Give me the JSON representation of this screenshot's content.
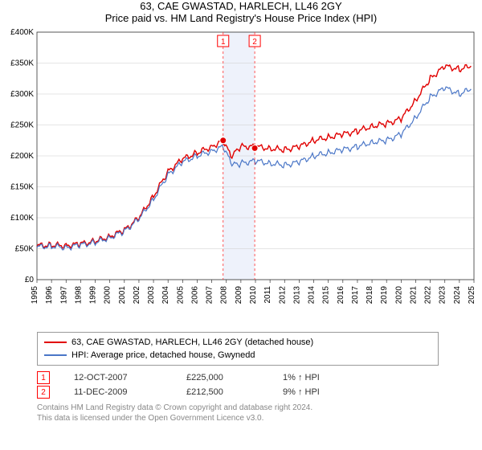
{
  "title": "63, CAE GWASTAD, HARLECH, LL46 2GY",
  "subtitle": "Price paid vs. HM Land Registry's House Price Index (HPI)",
  "chart": {
    "type": "line",
    "x_years": [
      1995,
      1996,
      1997,
      1998,
      1999,
      2000,
      2001,
      2002,
      2003,
      2004,
      2005,
      2006,
      2007,
      2008,
      2009,
      2010,
      2011,
      2012,
      2013,
      2014,
      2015,
      2016,
      2017,
      2018,
      2019,
      2020,
      2021,
      2022,
      2023,
      2024,
      2025
    ],
    "ylim": [
      0,
      400000
    ],
    "ytick_step": 50000,
    "ytick_labels": [
      "£0",
      "£50K",
      "£100K",
      "£150K",
      "£200K",
      "£250K",
      "£300K",
      "£350K",
      "£400K"
    ],
    "background_color": "#ffffff",
    "grid_color": "#cccccc",
    "axis_color": "#333333",
    "tick_fontsize": 10,
    "series": [
      {
        "name": "63, CAE GWASTAD, HARLECH, LL46 2GY (detached house)",
        "color": "#e10000",
        "width": 1.4,
        "points": [
          [
            1995,
            55000
          ],
          [
            1996,
            56000
          ],
          [
            1997,
            55000
          ],
          [
            1998,
            58000
          ],
          [
            1999,
            62000
          ],
          [
            2000,
            70000
          ],
          [
            2001,
            80000
          ],
          [
            2002,
            100000
          ],
          [
            2003,
            135000
          ],
          [
            2004,
            175000
          ],
          [
            2005,
            195000
          ],
          [
            2006,
            205000
          ],
          [
            2007,
            215000
          ],
          [
            2007.8,
            225000
          ],
          [
            2008.3,
            200000
          ],
          [
            2008.8,
            210000
          ],
          [
            2009,
            215000
          ],
          [
            2010,
            215000
          ],
          [
            2011,
            212000
          ],
          [
            2012,
            210000
          ],
          [
            2013,
            215000
          ],
          [
            2014,
            225000
          ],
          [
            2015,
            230000
          ],
          [
            2016,
            235000
          ],
          [
            2017,
            240000
          ],
          [
            2018,
            248000
          ],
          [
            2019,
            252000
          ],
          [
            2020,
            260000
          ],
          [
            2021,
            290000
          ],
          [
            2022,
            325000
          ],
          [
            2023,
            345000
          ],
          [
            2024,
            340000
          ],
          [
            2024.8,
            345000
          ]
        ]
      },
      {
        "name": "HPI: Average price, detached house, Gwynedd",
        "color": "#4a76c7",
        "width": 1.2,
        "points": [
          [
            1995,
            53000
          ],
          [
            1996,
            54000
          ],
          [
            1997,
            52000
          ],
          [
            1998,
            56000
          ],
          [
            1999,
            60000
          ],
          [
            2000,
            68000
          ],
          [
            2001,
            78000
          ],
          [
            2002,
            98000
          ],
          [
            2003,
            130000
          ],
          [
            2004,
            170000
          ],
          [
            2005,
            190000
          ],
          [
            2006,
            200000
          ],
          [
            2007,
            208000
          ],
          [
            2007.8,
            215000
          ],
          [
            2008.3,
            190000
          ],
          [
            2008.8,
            185000
          ],
          [
            2009,
            188000
          ],
          [
            2010,
            192000
          ],
          [
            2011,
            188000
          ],
          [
            2012,
            185000
          ],
          [
            2013,
            190000
          ],
          [
            2014,
            200000
          ],
          [
            2015,
            205000
          ],
          [
            2016,
            210000
          ],
          [
            2017,
            215000
          ],
          [
            2018,
            222000
          ],
          [
            2019,
            225000
          ],
          [
            2020,
            235000
          ],
          [
            2021,
            262000
          ],
          [
            2022,
            295000
          ],
          [
            2023,
            310000
          ],
          [
            2024,
            300000
          ],
          [
            2024.8,
            308000
          ]
        ]
      }
    ],
    "sale_markers": [
      {
        "n": "1",
        "year": 2007.78,
        "price": 225000
      },
      {
        "n": "2",
        "year": 2009.95,
        "price": 212500
      }
    ],
    "highlight_band": {
      "from": 2007.78,
      "to": 2009.95,
      "fill": "#eef2fb"
    },
    "marker_line_color": "#ff3030",
    "marker_dot_fill": "#e10000"
  },
  "legend": {
    "items": [
      {
        "color": "#e10000",
        "label": "63, CAE GWASTAD, HARLECH, LL46 2GY (detached house)"
      },
      {
        "color": "#4a76c7",
        "label": "HPI: Average price, detached house, Gwynedd"
      }
    ]
  },
  "sales": [
    {
      "n": "1",
      "date": "12-OCT-2007",
      "price": "£225,000",
      "delta": "1% ↑ HPI"
    },
    {
      "n": "2",
      "date": "11-DEC-2009",
      "price": "£212,500",
      "delta": "9% ↑ HPI"
    }
  ],
  "attribution": {
    "line1": "Contains HM Land Registry data © Crown copyright and database right 2024.",
    "line2": "This data is licensed under the Open Government Licence v3.0."
  }
}
